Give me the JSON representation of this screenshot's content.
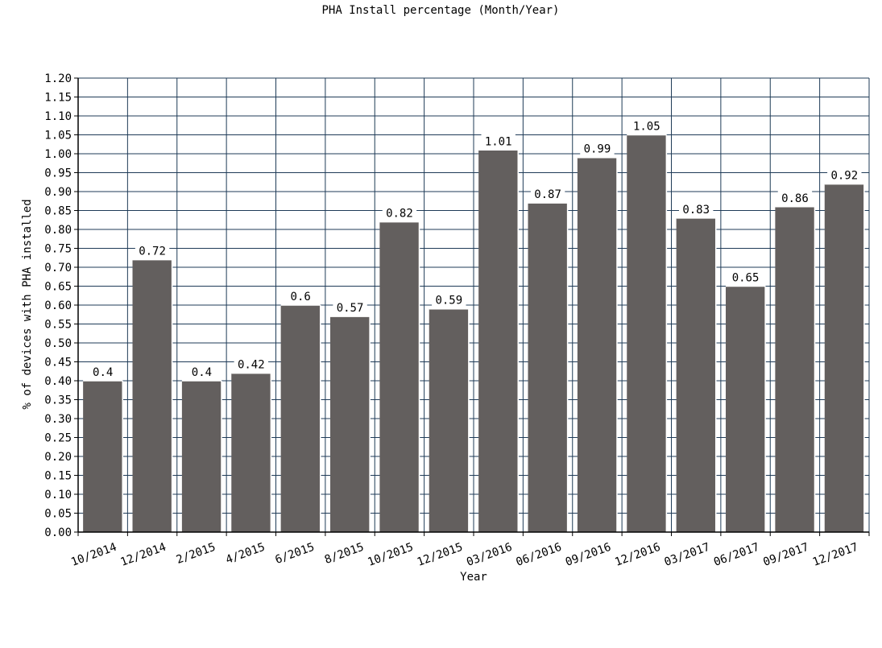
{
  "chart_data": {
    "type": "bar",
    "title": "PHA Install percentage (Month/Year)",
    "xlabel": "Year",
    "ylabel": "% of devices with PHA installed",
    "categories": [
      "10/2014",
      "12/2014",
      "2/2015",
      "4/2015",
      "6/2015",
      "8/2015",
      "10/2015",
      "12/2015",
      "03/2016",
      "06/2016",
      "09/2016",
      "12/2016",
      "03/2017",
      "06/2017",
      "09/2017",
      "12/2017"
    ],
    "values": [
      0.4,
      0.72,
      0.4,
      0.42,
      0.6,
      0.57,
      0.82,
      0.59,
      1.01,
      0.87,
      0.99,
      1.05,
      0.83,
      0.65,
      0.86,
      0.92
    ],
    "value_labels": [
      "0.4",
      "0.72",
      "0.4",
      "0.42",
      "0.6",
      "0.57",
      "0.82",
      "0.59",
      "1.01",
      "0.87",
      "0.99",
      "1.05",
      "0.83",
      "0.65",
      "0.86",
      "0.92"
    ],
    "ylim": [
      0,
      1.2
    ],
    "y_ticks": [
      "0.00",
      "0.05",
      "0.10",
      "0.15",
      "0.20",
      "0.25",
      "0.30",
      "0.35",
      "0.40",
      "0.45",
      "0.50",
      "0.55",
      "0.60",
      "0.65",
      "0.70",
      "0.75",
      "0.80",
      "0.85",
      "0.90",
      "0.95",
      "1.00",
      "1.05",
      "1.10",
      "1.15",
      "1.20"
    ],
    "grid": true,
    "legend": "none",
    "colors": {
      "bar": "#635f5e",
      "grid": "#1f3b57",
      "axis": "#000000",
      "text": "#000000"
    }
  }
}
